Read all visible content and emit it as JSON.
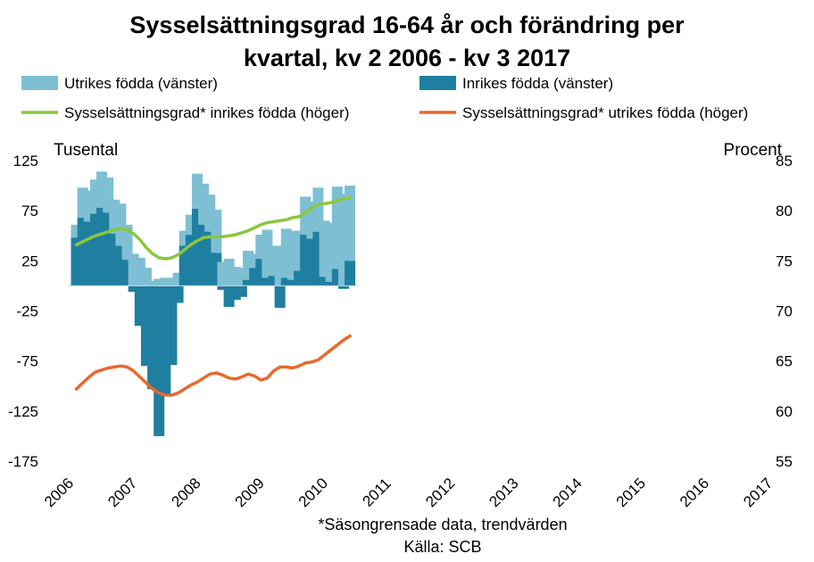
{
  "chart_data": {
    "type": "bar+line",
    "title_line1": "Sysselsättningsgrad 16-64 år och förändring per",
    "title_line2": "kvartal, kv 2 2006 - kv 3 2017",
    "y_left_label": "Tusental",
    "y_right_label": "Procent",
    "y_left_ticks": [
      "125",
      "75",
      "25",
      "-25",
      "-75",
      "-125",
      "-175"
    ],
    "y_right_ticks": [
      "85",
      "80",
      "75",
      "70",
      "65",
      "60",
      "55"
    ],
    "y_left_range": [
      -175,
      125
    ],
    "y_right_range": [
      55,
      85
    ],
    "x_ticks": [
      "2006",
      "2007",
      "2008",
      "2009",
      "2010",
      "2011",
      "2012",
      "2013",
      "2014",
      "2015",
      "2016",
      "2017"
    ],
    "legend": {
      "utrikes_bar": "Utrikes födda (vänster)",
      "inrikes_bar": "Inrikes födda (vänster)",
      "inrikes_line": "Sysselsättningsgrad* inrikes födda (höger)",
      "utrikes_line": "Sysselsättningsgrad* utrikes födda (höger)"
    },
    "colors": {
      "utrikes_bar": "#7fbfd3",
      "inrikes_bar": "#1f7fa0",
      "inrikes_line": "#8cc63f",
      "utrikes_line": "#e8692e"
    },
    "start_quarter": "2006Q2",
    "series": [
      {
        "name": "Inrikes födda (vänster)",
        "key": "inrikes_bar",
        "values": [
          48,
          68,
          64,
          72,
          78,
          73,
          52,
          40,
          26,
          -6,
          -40,
          -80,
          -103,
          -150,
          -109,
          -79,
          -17,
          40,
          51,
          77,
          61,
          54,
          33,
          -4,
          -21,
          -14,
          -11,
          6,
          18,
          27,
          8,
          10,
          -22,
          8,
          6,
          15,
          51,
          47,
          54,
          9,
          4,
          17,
          -3,
          25
        ]
      },
      {
        "name": "Utrikes födda (vänster)",
        "key": "utrikes_bar",
        "values": [
          13,
          30,
          31,
          34,
          36,
          35,
          34,
          42,
          35,
          32,
          28,
          18,
          5,
          7,
          8,
          8,
          13,
          15,
          20,
          35,
          41,
          37,
          43,
          24,
          27,
          19,
          18,
          29,
          14,
          24,
          48,
          30,
          40,
          49,
          49,
          40,
          38,
          37,
          44,
          56,
          59,
          82,
          92,
          75
        ]
      },
      {
        "name": "Sysselsättningsgrad* inrikes födda (höger)",
        "key": "inrikes_line",
        "values": [
          76.6,
          76.9,
          77.2,
          77.5,
          77.7,
          77.9,
          78.1,
          78.2,
          78.1,
          77.7,
          77.1,
          76.3,
          75.7,
          75.3,
          75.2,
          75.3,
          75.6,
          76.1,
          76.6,
          77.0,
          77.3,
          77.4,
          77.4,
          77.4,
          77.5,
          77.6,
          77.8,
          78.0,
          78.3,
          78.6,
          78.8,
          78.9,
          79.0,
          79.1,
          79.3,
          79.4,
          79.8,
          80.3,
          80.6,
          80.7,
          80.8,
          81.0,
          81.2,
          81.3
        ]
      },
      {
        "name": "Sysselsättningsgrad* utrikes födda (höger)",
        "key": "utrikes_line",
        "values": [
          62.2,
          62.8,
          63.4,
          63.9,
          64.1,
          64.3,
          64.4,
          64.5,
          64.4,
          64.0,
          63.4,
          62.8,
          62.2,
          61.8,
          61.6,
          61.6,
          61.8,
          62.2,
          62.6,
          62.9,
          63.3,
          63.7,
          63.8,
          63.6,
          63.3,
          63.2,
          63.4,
          63.7,
          63.5,
          63.1,
          63.3,
          64.0,
          64.4,
          64.4,
          64.3,
          64.5,
          64.8,
          64.9,
          65.1,
          65.6,
          66.1,
          66.6,
          67.1,
          67.5
        ]
      }
    ],
    "footnote": "*Säsongrensade data, trendvärden",
    "source": "Källa: SCB"
  }
}
